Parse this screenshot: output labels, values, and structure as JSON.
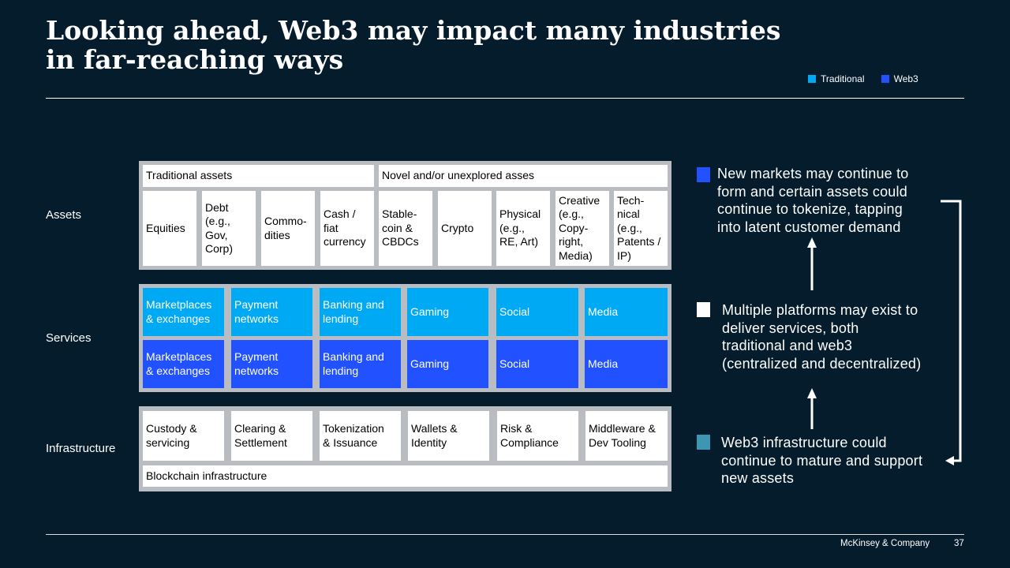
{
  "title": {
    "line1": "Looking ahead, Web3 may impact many industries",
    "line2": "in far-reaching ways"
  },
  "legend": {
    "items": [
      {
        "label": "Traditional",
        "color": "#00a9f4"
      },
      {
        "label": "Web3",
        "color": "#2251ff"
      }
    ]
  },
  "rows": {
    "assets": "Assets",
    "services": "Services",
    "infrastructure": "Infrastructure"
  },
  "assets": {
    "headers": [
      "Traditional assets",
      "Novel and/or unexplored asses"
    ],
    "cells": [
      "Equities",
      "Debt\n(e.g.,\nGov,\nCorp)",
      "Commo-\ndities",
      "Cash /\nfiat\ncurrency",
      "Stable-\ncoin &\nCBDCs",
      "Crypto",
      "Physical\n(e.g.,\nRE, Art)",
      "Creative\n(e.g.,\nCopy-\nright,\nMedia)",
      "Tech-\nnical\n(e.g.,\nPatents /\nIP)"
    ]
  },
  "services": {
    "traditional": [
      "Marketplaces\n& exchanges",
      "Payment\nnetworks",
      "Banking and\nlending",
      "Gaming",
      "Social",
      "Media"
    ],
    "web3": [
      "Marketplaces\n& exchanges",
      "Payment\nnetworks",
      "Banking and\nlending",
      "Gaming",
      "Social",
      "Media"
    ]
  },
  "infrastructure": {
    "cells": [
      "Custody &\nservicing",
      "Clearing &\nSettlement",
      "Tokenization\n& Issuance",
      "Wallets &\nIdentity",
      "Risk &\nCompliance",
      "Middleware &\nDev Tooling"
    ],
    "base": "Blockchain infrastructure"
  },
  "callouts": [
    {
      "text": "New markets may continue to\nform and certain assets could\ncontinue to tokenize, tapping\ninto latent customer demand",
      "color": "#2251ff"
    },
    {
      "text": "Multiple platforms may exist to\ndeliver services, both\ntraditional and web3\n(centralized and decentralized)",
      "color": "#ffffff"
    },
    {
      "text": "Web3 infrastructure could\ncontinue to mature and support\nnew assets",
      "color": "#3c96b4"
    }
  ],
  "footer": {
    "company": "McKinsey & Company",
    "page": "37"
  }
}
